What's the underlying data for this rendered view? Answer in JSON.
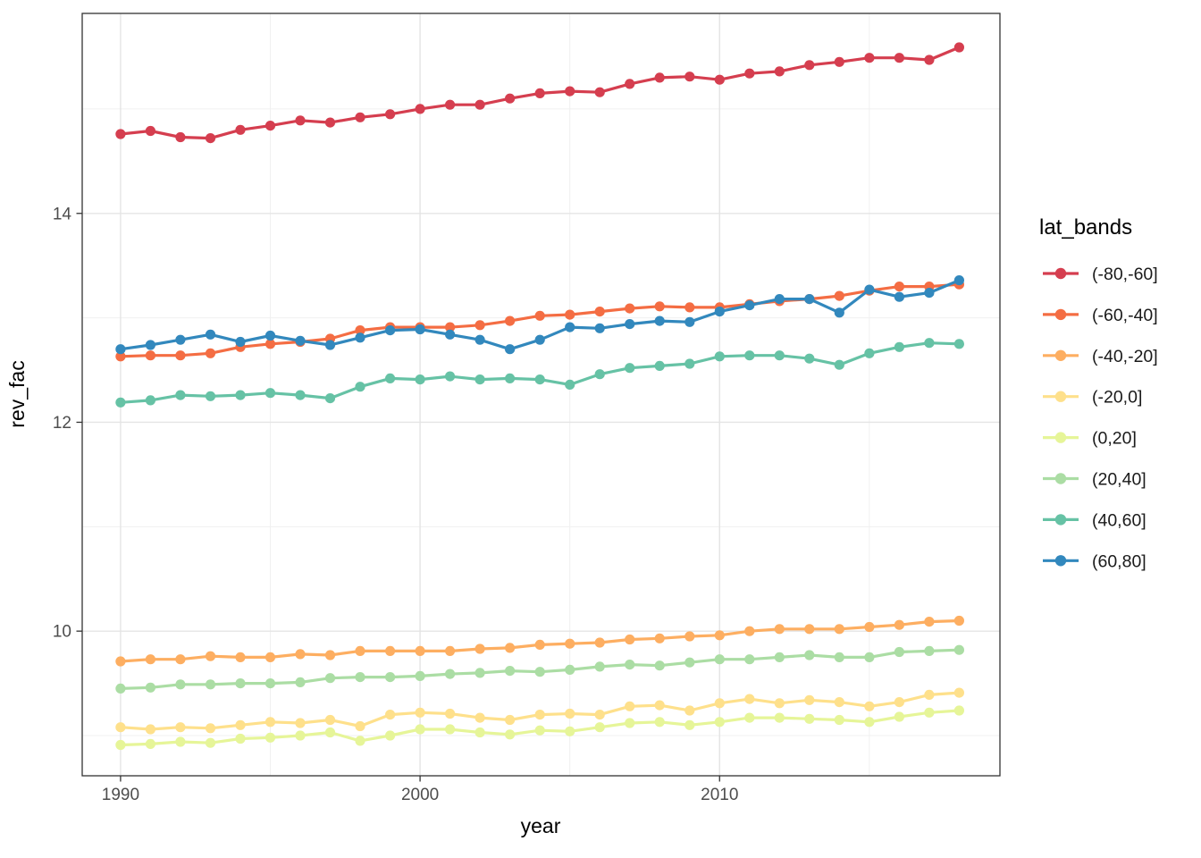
{
  "chart_data": {
    "type": "line",
    "title": "",
    "xlabel": "year",
    "ylabel": "rev_fac",
    "x": [
      1990,
      1991,
      1992,
      1993,
      1994,
      1995,
      1996,
      1997,
      1998,
      1999,
      2000,
      2001,
      2002,
      2003,
      2004,
      2005,
      2006,
      2007,
      2008,
      2009,
      2010,
      2011,
      2012,
      2013,
      2014,
      2015,
      2016,
      2017,
      2018
    ],
    "xlim": [
      1988.72,
      2019.36
    ],
    "ylim": [
      8.615,
      15.915
    ],
    "x_ticks": [
      1990,
      2000,
      2010
    ],
    "x_minor_ticks": [
      1995,
      2005,
      2015
    ],
    "y_ticks": [
      10,
      12,
      14
    ],
    "y_minor_ticks": [
      9,
      11,
      13,
      15
    ],
    "grid": true,
    "legend": {
      "title": "lat_bands",
      "position": "right"
    },
    "series": [
      {
        "name": "(-80,-60]",
        "color": "#d53e4f",
        "values": [
          14.76,
          14.79,
          14.73,
          14.72,
          14.8,
          14.84,
          14.89,
          14.87,
          14.92,
          14.95,
          15.0,
          15.04,
          15.04,
          15.1,
          15.15,
          15.17,
          15.16,
          15.24,
          15.3,
          15.31,
          15.28,
          15.34,
          15.36,
          15.42,
          15.45,
          15.49,
          15.49,
          15.47,
          15.59
        ]
      },
      {
        "name": "(-60,-40]",
        "color": "#f46d43",
        "values": [
          12.63,
          12.64,
          12.64,
          12.66,
          12.72,
          12.75,
          12.77,
          12.8,
          12.88,
          12.91,
          12.91,
          12.91,
          12.93,
          12.97,
          13.02,
          13.03,
          13.06,
          13.09,
          13.11,
          13.1,
          13.1,
          13.13,
          13.16,
          13.18,
          13.21,
          13.26,
          13.3,
          13.3,
          13.32
        ]
      },
      {
        "name": "(-40,-20]",
        "color": "#fdae61",
        "values": [
          9.71,
          9.73,
          9.73,
          9.76,
          9.75,
          9.75,
          9.78,
          9.77,
          9.81,
          9.81,
          9.81,
          9.81,
          9.83,
          9.84,
          9.87,
          9.88,
          9.89,
          9.92,
          9.93,
          9.95,
          9.96,
          10.0,
          10.02,
          10.02,
          10.02,
          10.04,
          10.06,
          10.09,
          10.1
        ]
      },
      {
        "name": "(-20,0]",
        "color": "#fee08b",
        "values": [
          9.08,
          9.06,
          9.08,
          9.07,
          9.1,
          9.13,
          9.12,
          9.15,
          9.09,
          9.2,
          9.22,
          9.21,
          9.17,
          9.15,
          9.2,
          9.21,
          9.2,
          9.28,
          9.29,
          9.24,
          9.31,
          9.35,
          9.31,
          9.34,
          9.32,
          9.28,
          9.32,
          9.39,
          9.41
        ]
      },
      {
        "name": "(0,20]",
        "color": "#e6f598",
        "values": [
          8.91,
          8.92,
          8.94,
          8.93,
          8.97,
          8.98,
          9.0,
          9.03,
          8.95,
          9.0,
          9.06,
          9.06,
          9.03,
          9.01,
          9.05,
          9.04,
          9.08,
          9.12,
          9.13,
          9.1,
          9.13,
          9.17,
          9.17,
          9.16,
          9.15,
          9.13,
          9.18,
          9.22,
          9.24
        ]
      },
      {
        "name": "(20,40]",
        "color": "#abdda4",
        "values": [
          9.45,
          9.46,
          9.49,
          9.49,
          9.5,
          9.5,
          9.51,
          9.55,
          9.56,
          9.56,
          9.57,
          9.59,
          9.6,
          9.62,
          9.61,
          9.63,
          9.66,
          9.68,
          9.67,
          9.7,
          9.73,
          9.73,
          9.75,
          9.77,
          9.75,
          9.75,
          9.8,
          9.81,
          9.82
        ]
      },
      {
        "name": "(40,60]",
        "color": "#66c2a5",
        "values": [
          12.19,
          12.21,
          12.26,
          12.25,
          12.26,
          12.28,
          12.26,
          12.23,
          12.34,
          12.42,
          12.41,
          12.44,
          12.41,
          12.42,
          12.41,
          12.36,
          12.46,
          12.52,
          12.54,
          12.56,
          12.63,
          12.64,
          12.64,
          12.61,
          12.55,
          12.66,
          12.72,
          12.76,
          12.75
        ]
      },
      {
        "name": "(60,80]",
        "color": "#3288bd",
        "values": [
          12.7,
          12.74,
          12.79,
          12.84,
          12.77,
          12.83,
          12.78,
          12.74,
          12.81,
          12.88,
          12.89,
          12.84,
          12.79,
          12.7,
          12.79,
          12.91,
          12.9,
          12.94,
          12.97,
          12.96,
          13.06,
          13.12,
          13.18,
          13.18,
          13.05,
          13.27,
          13.2,
          13.24,
          13.36
        ]
      }
    ]
  },
  "style": {
    "panel_background": "#ffffff",
    "panel_border_color": "#333333",
    "grid_major_color": "#e4e4e4",
    "grid_minor_color": "#f0f0f0",
    "tick_color": "#333333",
    "tick_label_color": "#4d4d4d",
    "axis_title_color": "#000000",
    "legend_title_color": "#000000",
    "legend_label_color": "#1a1a1a"
  }
}
